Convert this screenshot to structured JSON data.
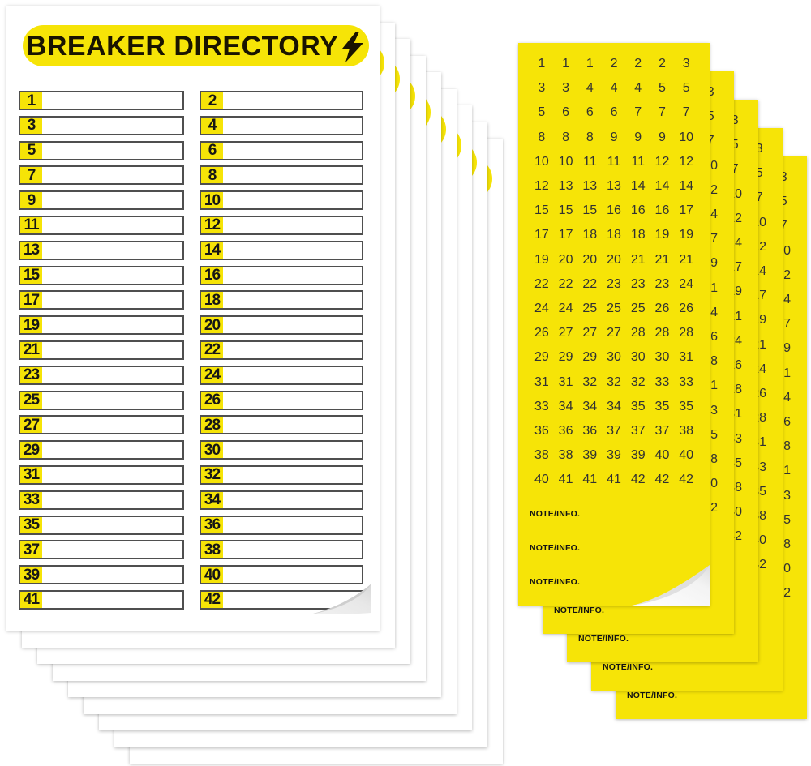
{
  "directory_sheets": {
    "sheet_count": 9,
    "title": "BREAKER DIRECTORY",
    "title_icon": "lightning-bolt-icon",
    "left_column_numbers": [
      1,
      3,
      5,
      7,
      9,
      11,
      13,
      15,
      17,
      19,
      21,
      23,
      25,
      27,
      29,
      31,
      33,
      35,
      37,
      39,
      41
    ],
    "right_column_numbers": [
      2,
      4,
      6,
      8,
      10,
      12,
      14,
      16,
      18,
      20,
      22,
      24,
      26,
      28,
      30,
      32,
      34,
      36,
      38,
      40,
      42
    ]
  },
  "sticker_sheets": {
    "sheet_count": 5,
    "grid_rows": [
      [
        1,
        1,
        1,
        2,
        2,
        2,
        3
      ],
      [
        3,
        3,
        4,
        4,
        4,
        5,
        5
      ],
      [
        5,
        6,
        6,
        6,
        7,
        7,
        7
      ],
      [
        8,
        8,
        8,
        9,
        9,
        9,
        10
      ],
      [
        10,
        10,
        11,
        11,
        11,
        12,
        12
      ],
      [
        12,
        13,
        13,
        13,
        14,
        14,
        14
      ],
      [
        15,
        15,
        15,
        16,
        16,
        16,
        17
      ],
      [
        17,
        17,
        18,
        18,
        18,
        19,
        19
      ],
      [
        19,
        20,
        20,
        20,
        21,
        21,
        21
      ],
      [
        22,
        22,
        22,
        23,
        23,
        23,
        24
      ],
      [
        24,
        24,
        25,
        25,
        25,
        26,
        26
      ],
      [
        26,
        27,
        27,
        27,
        28,
        28,
        28
      ],
      [
        29,
        29,
        29,
        30,
        30,
        30,
        31
      ],
      [
        31,
        31,
        32,
        32,
        32,
        33,
        33
      ],
      [
        33,
        34,
        34,
        34,
        35,
        35,
        35
      ],
      [
        36,
        36,
        36,
        37,
        37,
        37,
        38
      ],
      [
        38,
        38,
        39,
        39,
        39,
        40,
        40
      ],
      [
        40,
        41,
        41,
        41,
        42,
        42,
        42
      ]
    ],
    "note_labels": [
      "NOTE/INFO.",
      "NOTE/INFO.",
      "NOTE/INFO."
    ]
  },
  "colors": {
    "sheet_yellow": "#F6E407",
    "row_border": "#4F4F4F",
    "number_black": "#161616",
    "grid_number": "#323232",
    "page_background": "#FFFFFF"
  }
}
